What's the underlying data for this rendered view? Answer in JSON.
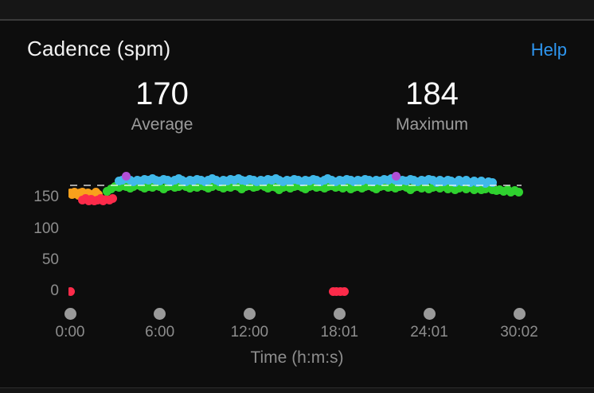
{
  "header": {
    "title": "Cadence (spm)",
    "help_label": "Help"
  },
  "stats": [
    {
      "value": "170",
      "label": "Average"
    },
    {
      "value": "184",
      "label": "Maximum"
    }
  ],
  "chart_data": {
    "type": "scatter",
    "title": "Cadence (spm)",
    "xlabel": "Time (h:m:s)",
    "ylabel": "",
    "x_range_seconds": [
      0,
      1802
    ],
    "ylim": [
      0,
      240
    ],
    "y_ticks": [
      150,
      100,
      50,
      0
    ],
    "x_ticks": [
      "0:00",
      "6:00",
      "12:00",
      "18:01",
      "24:01",
      "30:02"
    ],
    "x_tick_seconds": [
      0,
      360,
      720,
      1081,
      1441,
      1802
    ],
    "average_line": 170,
    "grid": false,
    "legend": false,
    "colors": {
      "average_dash": "rgba(255,255,255,0.62)",
      "zone_red": "#fc2b4a",
      "zone_orange": "#f9a11c",
      "zone_green": "#2fd12f",
      "zone_blue": "#41b9ea",
      "zone_purple": "#b14fd6"
    },
    "series": [
      {
        "name": "orange",
        "color": "#f9a11c",
        "start": 0,
        "step": 8,
        "values": [
          157,
          155,
          158,
          156,
          154,
          157,
          159,
          156,
          154,
          157,
          155,
          153,
          156,
          158,
          155
        ]
      },
      {
        "name": "red",
        "color": "#fc2b4a",
        "points": [
          [
            2,
            0
          ],
          [
            50,
            146
          ],
          [
            62,
            148
          ],
          [
            74,
            145
          ],
          [
            86,
            147
          ],
          [
            98,
            144
          ],
          [
            110,
            146
          ],
          [
            122,
            148
          ],
          [
            134,
            145
          ],
          [
            146,
            147
          ],
          [
            158,
            146
          ],
          [
            170,
            148
          ],
          [
            1055,
            0
          ],
          [
            1070,
            0
          ],
          [
            1085,
            0
          ],
          [
            1100,
            0
          ]
        ]
      },
      {
        "name": "green",
        "color": "#2fd12f",
        "start": 150,
        "step": 15,
        "values": [
          160,
          164,
          168,
          166,
          169,
          167,
          165,
          168,
          170,
          167,
          165,
          168,
          166,
          169,
          167,
          164,
          167,
          169,
          166,
          168,
          170,
          167,
          165,
          168,
          166,
          169,
          167,
          165,
          168,
          170,
          167,
          165,
          168,
          166,
          169,
          167,
          164,
          167,
          169,
          166,
          168,
          170,
          167,
          165,
          168,
          166,
          163,
          166,
          168,
          165,
          167,
          169,
          166,
          164,
          167,
          169,
          166,
          168,
          165,
          167,
          169,
          166,
          168,
          165,
          167,
          164,
          166,
          168,
          165,
          167,
          169,
          166,
          164,
          167,
          169,
          166,
          168,
          165,
          167,
          169,
          166,
          163,
          166,
          168,
          165,
          167,
          164,
          166,
          168,
          165,
          167,
          164,
          166,
          163,
          165,
          167,
          164,
          166,
          163,
          165,
          162,
          164,
          166,
          163,
          161,
          163,
          160,
          162,
          159,
          161,
          158
        ]
      },
      {
        "name": "blue",
        "color": "#41b9ea",
        "start": 195,
        "step": 15,
        "values": [
          176,
          178,
          180,
          177,
          175,
          178,
          176,
          179,
          177,
          180,
          178,
          176,
          179,
          177,
          175,
          178,
          180,
          177,
          175,
          178,
          176,
          179,
          177,
          175,
          178,
          180,
          177,
          175,
          178,
          176,
          179,
          177,
          180,
          178,
          176,
          179,
          177,
          175,
          178,
          176,
          179,
          177,
          180,
          178,
          175,
          178,
          176,
          179,
          177,
          175,
          178,
          176,
          179,
          177,
          175,
          178,
          180,
          177,
          175,
          178,
          176,
          179,
          177,
          175,
          178,
          176,
          179,
          177,
          175,
          178,
          176,
          179,
          177,
          180,
          178,
          175,
          178,
          176,
          179,
          177,
          175,
          178,
          176,
          179,
          177,
          174,
          177,
          175,
          178,
          176,
          174,
          177,
          175,
          177,
          174,
          176,
          174,
          176,
          173,
          175,
          174
        ]
      },
      {
        "name": "purple",
        "color": "#b14fd6",
        "points": [
          [
            225,
            184
          ],
          [
            1307,
            184
          ]
        ]
      }
    ]
  }
}
